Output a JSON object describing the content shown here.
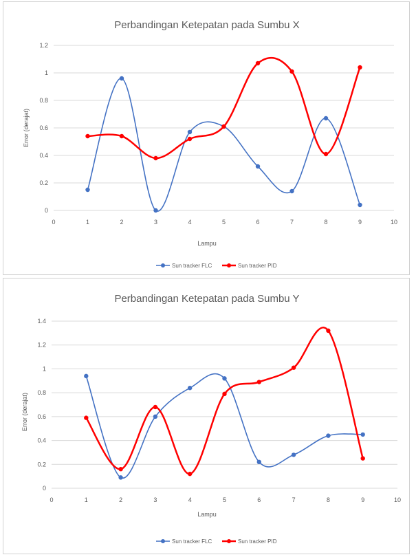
{
  "chart_data": [
    {
      "type": "line",
      "title": "Perbandingan Ketepatan pada Sumbu X",
      "xlabel": "Lampu",
      "ylabel": "Error (derajat)",
      "xlim": [
        0,
        10
      ],
      "ylim": [
        0,
        1.2
      ],
      "xticks": [
        "0",
        "1",
        "2",
        "3",
        "4",
        "5",
        "6",
        "7",
        "8",
        "9",
        "10"
      ],
      "yticks": [
        "0",
        "0.2",
        "0.4",
        "0.6",
        "0.8",
        "1",
        "1.2"
      ],
      "grid": "horizontal",
      "legend_position": "bottom",
      "x": [
        1,
        2,
        3,
        4,
        5,
        6,
        7,
        8,
        9
      ],
      "series": [
        {
          "name": "Sun tracker FLC",
          "color": "#4472c4",
          "values": [
            0.15,
            0.96,
            0.0,
            0.57,
            0.61,
            0.32,
            0.14,
            0.67,
            0.04
          ]
        },
        {
          "name": "Sun tracker PID",
          "color": "#ff0000",
          "values": [
            0.54,
            0.54,
            0.38,
            0.52,
            0.61,
            1.07,
            1.01,
            0.41,
            1.04
          ]
        }
      ]
    },
    {
      "type": "line",
      "title": "Perbandingan Ketepatan pada Sumbu Y",
      "xlabel": "Lampu",
      "ylabel": "Error (derajat)",
      "xlim": [
        0,
        10
      ],
      "ylim": [
        0,
        1.4
      ],
      "xticks": [
        "0",
        "1",
        "2",
        "3",
        "4",
        "5",
        "6",
        "7",
        "8",
        "9",
        "10"
      ],
      "yticks": [
        "0",
        "0.2",
        "0.4",
        "0.6",
        "0.8",
        "1",
        "1.2",
        "1.4"
      ],
      "grid": "horizontal",
      "legend_position": "bottom",
      "x": [
        1,
        2,
        3,
        4,
        5,
        6,
        7,
        8,
        9
      ],
      "series": [
        {
          "name": "Sun tracker FLC",
          "color": "#4472c4",
          "values": [
            0.94,
            0.09,
            0.6,
            0.84,
            0.92,
            0.22,
            0.28,
            0.44,
            0.45
          ]
        },
        {
          "name": "Sun tracker PID",
          "color": "#ff0000",
          "values": [
            0.59,
            0.16,
            0.68,
            0.12,
            0.79,
            0.89,
            1.01,
            1.32,
            0.25
          ]
        }
      ]
    }
  ]
}
